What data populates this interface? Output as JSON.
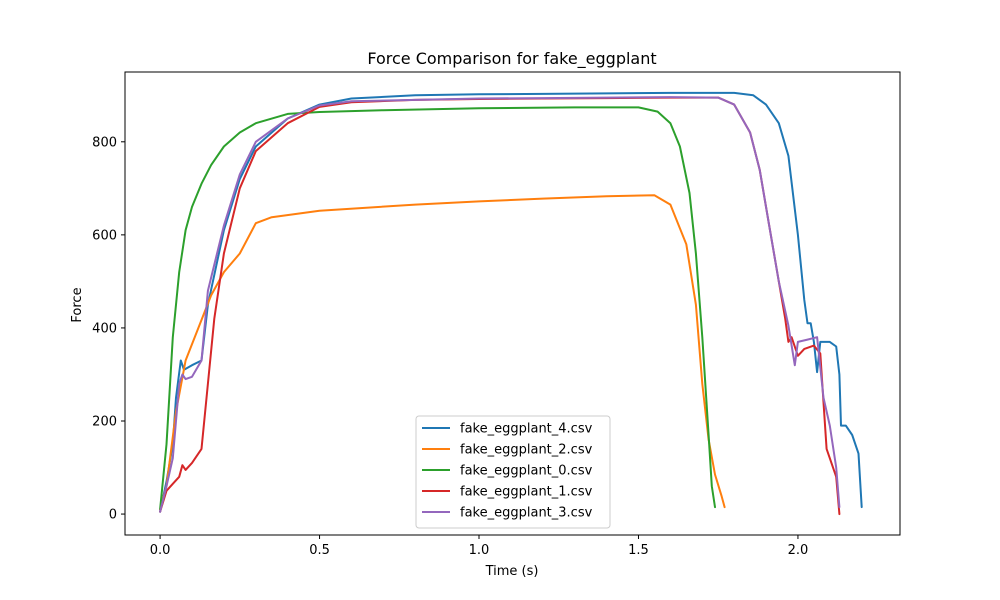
{
  "chart_data": {
    "type": "line",
    "title": "Force Comparison for fake_eggplant",
    "xlabel": "Time (s)",
    "ylabel": "Force",
    "xlim": [
      -0.11,
      2.32
    ],
    "ylim": [
      -45,
      950
    ],
    "xticks": [
      0.0,
      0.5,
      1.0,
      1.5,
      2.0
    ],
    "xtick_labels": [
      "0.0",
      "0.5",
      "1.0",
      "1.5",
      "2.0"
    ],
    "yticks": [
      0,
      200,
      400,
      600,
      800
    ],
    "ytick_labels": [
      "0",
      "200",
      "400",
      "600",
      "800"
    ],
    "grid": false,
    "legend_position": "lower center",
    "series": [
      {
        "name": "fake_eggplant_4.csv",
        "color": "#1f77b4",
        "x": [
          0.0,
          0.02,
          0.04,
          0.05,
          0.065,
          0.075,
          0.1,
          0.13,
          0.15,
          0.2,
          0.25,
          0.3,
          0.4,
          0.5,
          0.6,
          0.8,
          1.0,
          1.2,
          1.4,
          1.6,
          1.8,
          1.86,
          1.9,
          1.94,
          1.97,
          2.0,
          2.02,
          2.03,
          2.04,
          2.05,
          2.06,
          2.07,
          2.1,
          2.12,
          2.13,
          2.135,
          2.15,
          2.17,
          2.19,
          2.2
        ],
        "y": [
          5,
          70,
          150,
          250,
          330,
          310,
          320,
          330,
          450,
          610,
          720,
          790,
          850,
          880,
          893,
          900,
          902,
          903,
          904,
          905,
          905,
          900,
          880,
          840,
          770,
          600,
          460,
          410,
          410,
          370,
          305,
          370,
          370,
          360,
          300,
          190,
          190,
          170,
          130,
          15
        ]
      },
      {
        "name": "fake_eggplant_2.csv",
        "color": "#ff7f0e",
        "x": [
          0.0,
          0.02,
          0.05,
          0.08,
          0.12,
          0.16,
          0.2,
          0.25,
          0.3,
          0.35,
          0.5,
          0.8,
          1.0,
          1.2,
          1.4,
          1.55,
          1.6,
          1.65,
          1.68,
          1.7,
          1.72,
          1.74,
          1.76,
          1.77
        ],
        "y": [
          10,
          60,
          220,
          330,
          400,
          470,
          520,
          560,
          625,
          638,
          652,
          665,
          672,
          678,
          683,
          685,
          665,
          580,
          450,
          280,
          160,
          85,
          40,
          15
        ]
      },
      {
        "name": "fake_eggplant_0.csv",
        "color": "#2ca02c",
        "x": [
          0.0,
          0.02,
          0.04,
          0.06,
          0.08,
          0.1,
          0.13,
          0.16,
          0.2,
          0.25,
          0.3,
          0.4,
          0.5,
          0.7,
          1.0,
          1.3,
          1.5,
          1.56,
          1.6,
          1.63,
          1.66,
          1.68,
          1.7,
          1.72,
          1.73,
          1.74
        ],
        "y": [
          10,
          150,
          380,
          520,
          610,
          660,
          710,
          750,
          790,
          820,
          840,
          860,
          864,
          868,
          872,
          874,
          874,
          865,
          840,
          790,
          690,
          560,
          380,
          170,
          60,
          15
        ]
      },
      {
        "name": "fake_eggplant_1.csv",
        "color": "#d62728",
        "x": [
          0.0,
          0.02,
          0.04,
          0.06,
          0.07,
          0.08,
          0.1,
          0.13,
          0.15,
          0.17,
          0.2,
          0.25,
          0.3,
          0.4,
          0.5,
          0.6,
          0.8,
          1.0,
          1.2,
          1.4,
          1.6,
          1.75,
          1.8,
          1.85,
          1.88,
          1.91,
          1.94,
          1.96,
          1.97,
          1.98,
          2.0,
          2.02,
          2.05,
          2.07,
          2.08,
          2.09,
          2.1,
          2.12,
          2.13
        ],
        "y": [
          5,
          50,
          65,
          80,
          105,
          95,
          110,
          140,
          280,
          420,
          560,
          700,
          780,
          840,
          875,
          885,
          890,
          892,
          893,
          894,
          895,
          895,
          880,
          820,
          740,
          620,
          500,
          420,
          370,
          380,
          340,
          355,
          362,
          345,
          240,
          140,
          120,
          80,
          0
        ]
      },
      {
        "name": "fake_eggplant_3.csv",
        "color": "#9467bd",
        "x": [
          0.0,
          0.02,
          0.04,
          0.06,
          0.07,
          0.08,
          0.1,
          0.13,
          0.15,
          0.2,
          0.25,
          0.3,
          0.4,
          0.5,
          0.6,
          0.8,
          1.0,
          1.2,
          1.4,
          1.6,
          1.75,
          1.8,
          1.85,
          1.88,
          1.91,
          1.94,
          1.97,
          1.99,
          2.0,
          2.03,
          2.06,
          2.08,
          2.1,
          2.12,
          2.13
        ],
        "y": [
          5,
          60,
          120,
          280,
          300,
          290,
          295,
          330,
          480,
          620,
          730,
          800,
          850,
          878,
          887,
          890,
          893,
          894,
          895,
          896,
          895,
          880,
          820,
          740,
          620,
          500,
          405,
          320,
          370,
          375,
          380,
          250,
          190,
          100,
          15
        ]
      }
    ]
  }
}
